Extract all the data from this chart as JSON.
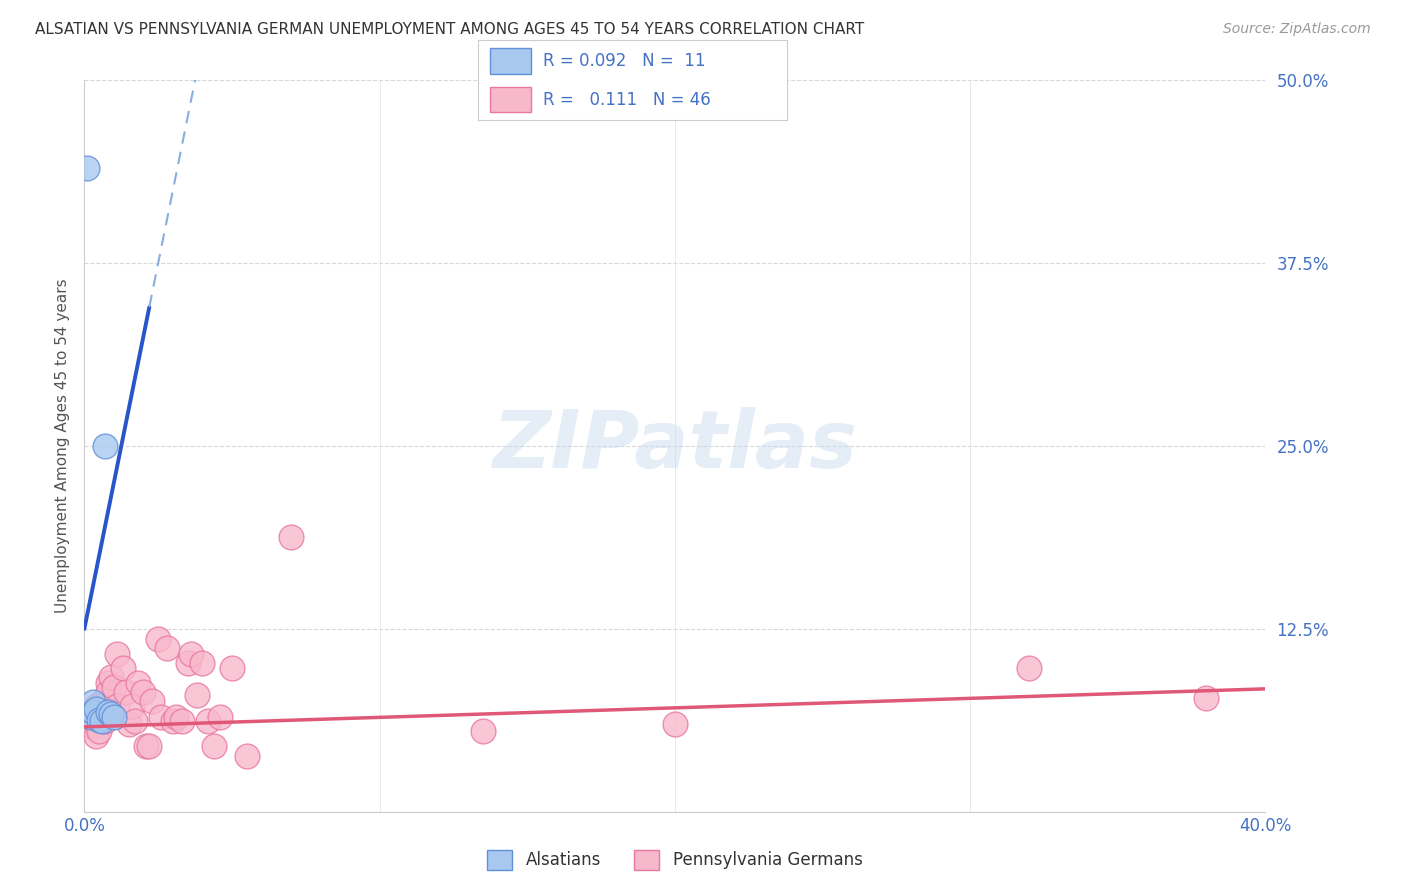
{
  "title": "ALSATIAN VS PENNSYLVANIA GERMAN UNEMPLOYMENT AMONG AGES 45 TO 54 YEARS CORRELATION CHART",
  "source": "Source: ZipAtlas.com",
  "ylabel": "Unemployment Among Ages 45 to 54 years",
  "xlim": [
    0.0,
    0.4
  ],
  "ylim": [
    0.0,
    0.5
  ],
  "yticks": [
    0.0,
    0.125,
    0.25,
    0.375,
    0.5
  ],
  "ytick_labels": [
    "",
    "12.5%",
    "25.0%",
    "37.5%",
    "50.0%"
  ],
  "xticks": [
    0.0,
    0.1,
    0.2,
    0.3,
    0.4
  ],
  "xtick_labels": [
    "0.0%",
    "",
    "",
    "",
    "40.0%"
  ],
  "alsatian_color": "#a8c8f0",
  "alsatian_edge": "#6090d8",
  "penn_color": "#f8b8cc",
  "penn_edge": "#e878a0",
  "trend_blue_solid": "#2855c8",
  "trend_blue_dash": "#88aee0",
  "trend_pink": "#e05878",
  "watermark": "ZIPatlas",
  "alsatian_x": [
    0.001,
    0.002,
    0.003,
    0.003,
    0.004,
    0.005,
    0.006,
    0.007,
    0.008,
    0.009,
    0.01
  ],
  "alsatian_y": [
    0.44,
    0.065,
    0.075,
    0.068,
    0.07,
    0.063,
    0.062,
    0.25,
    0.068,
    0.067,
    0.065
  ],
  "penn_x": [
    0.001,
    0.002,
    0.003,
    0.003,
    0.004,
    0.004,
    0.005,
    0.006,
    0.007,
    0.007,
    0.008,
    0.008,
    0.009,
    0.01,
    0.011,
    0.011,
    0.013,
    0.014,
    0.015,
    0.016,
    0.017,
    0.018,
    0.02,
    0.021,
    0.022,
    0.023,
    0.025,
    0.026,
    0.028,
    0.03,
    0.031,
    0.033,
    0.035,
    0.036,
    0.038,
    0.04,
    0.042,
    0.044,
    0.046,
    0.05,
    0.055,
    0.07,
    0.135,
    0.2,
    0.32,
    0.38
  ],
  "penn_y": [
    0.06,
    0.06,
    0.058,
    0.068,
    0.052,
    0.072,
    0.055,
    0.065,
    0.078,
    0.062,
    0.088,
    0.082,
    0.092,
    0.085,
    0.072,
    0.108,
    0.098,
    0.082,
    0.06,
    0.072,
    0.062,
    0.088,
    0.082,
    0.045,
    0.045,
    0.076,
    0.118,
    0.065,
    0.112,
    0.062,
    0.065,
    0.062,
    0.102,
    0.108,
    0.08,
    0.102,
    0.062,
    0.045,
    0.065,
    0.098,
    0.038,
    0.188,
    0.055,
    0.06,
    0.098,
    0.078
  ],
  "background_color": "#ffffff",
  "grid_color": "#d8d8d8",
  "trend_blue_intercept": 0.125,
  "trend_blue_slope": 10.0,
  "trend_pink_intercept": 0.058,
  "trend_pink_slope": 0.065
}
